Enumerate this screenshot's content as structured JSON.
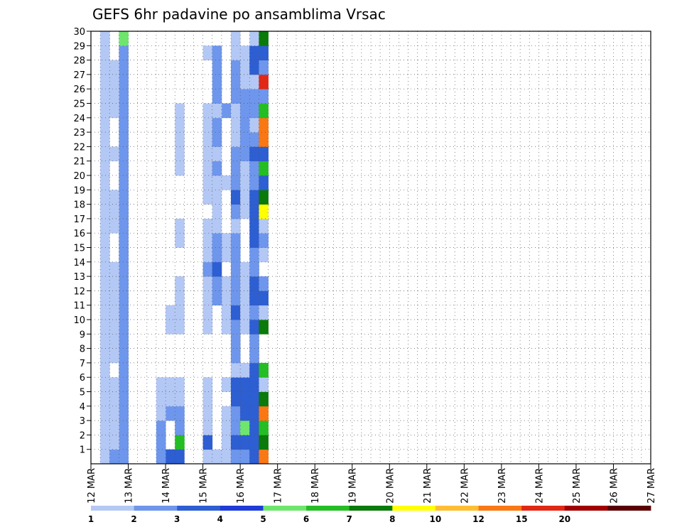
{
  "chart_data": {
    "type": "heatmap",
    "title": "GEFS 6hr padavine po ansamblima Vrsac",
    "x_tick_labels": [
      "12 MAR",
      "13 MAR",
      "14 MAR",
      "15 MAR",
      "16 MAR",
      "17 MAR",
      "18 MAR",
      "19 MAR",
      "20 MAR",
      "21 MAR",
      "22 MAR",
      "23 MAR",
      "24 MAR",
      "25 MAR",
      "26 MAR",
      "27 MAR"
    ],
    "y_tick_labels": [
      "1",
      "2",
      "3",
      "4",
      "5",
      "6",
      "7",
      "8",
      "9",
      "10",
      "11",
      "12",
      "13",
      "14",
      "15",
      "16",
      "17",
      "18",
      "19",
      "20",
      "21",
      "22",
      "23",
      "24",
      "25",
      "26",
      "27",
      "28",
      "29",
      "30"
    ],
    "x_unit": "6h steps from 12 MAR 00z",
    "y_range": [
      0,
      30
    ],
    "grid": true,
    "colorbar": {
      "labels": [
        "1",
        "2",
        "3",
        "4",
        "5",
        "6",
        "7",
        "8",
        "10",
        "12",
        "15",
        "20"
      ],
      "colors": [
        "#b4c8f5",
        "#6e96ec",
        "#2d5ed2",
        "#1e3cd8",
        "#6ee66e",
        "#24be24",
        "#0a7a0a",
        "#ffff00",
        "#ffbe32",
        "#fa7814",
        "#e12814",
        "#a00000",
        "#5a0000"
      ]
    },
    "cells": [
      [
        1,
        13,
        1
      ],
      [
        1,
        14,
        1
      ],
      [
        2,
        14,
        1
      ],
      [
        3,
        14,
        1
      ],
      [
        4,
        14,
        1
      ],
      [
        6,
        14,
        1
      ],
      [
        10,
        14,
        1
      ],
      [
        11,
        14,
        1
      ],
      [
        12,
        14,
        1
      ],
      [
        13,
        14,
        1
      ],
      [
        15,
        14,
        1
      ],
      [
        16,
        14,
        1
      ],
      [
        20,
        14,
        1
      ],
      [
        25,
        14,
        2
      ],
      [
        1,
        12,
        1
      ],
      [
        2,
        12,
        3
      ],
      [
        3,
        12,
        1
      ],
      [
        4,
        12,
        1
      ],
      [
        5,
        12,
        1
      ],
      [
        6,
        12,
        1
      ],
      [
        10,
        12,
        1
      ],
      [
        11,
        12,
        1
      ],
      [
        12,
        12,
        1
      ],
      [
        13,
        12,
        1
      ],
      [
        14,
        12,
        2
      ],
      [
        15,
        12,
        1
      ],
      [
        16,
        12,
        1
      ],
      [
        17,
        12,
        1
      ],
      [
        19,
        12,
        1
      ],
      [
        20,
        12,
        1
      ],
      [
        21,
        12,
        1
      ],
      [
        22,
        12,
        1
      ],
      [
        23,
        12,
        1
      ],
      [
        24,
        12,
        1
      ],
      [
        25,
        12,
        1
      ],
      [
        29,
        12,
        1
      ],
      [
        1,
        8,
        3
      ],
      [
        4,
        8,
        2
      ],
      [
        5,
        8,
        1
      ],
      [
        6,
        8,
        1
      ],
      [
        10,
        8,
        1
      ],
      [
        11,
        8,
        1
      ],
      [
        1,
        9,
        3
      ],
      [
        2,
        9,
        6
      ],
      [
        3,
        9,
        2
      ],
      [
        4,
        9,
        2
      ],
      [
        5,
        9,
        1
      ],
      [
        6,
        9,
        1
      ],
      [
        10,
        9,
        1
      ],
      [
        11,
        9,
        1
      ],
      [
        12,
        9,
        1
      ],
      [
        13,
        9,
        1
      ],
      [
        16,
        9,
        1
      ],
      [
        17,
        9,
        1
      ],
      [
        21,
        9,
        1
      ],
      [
        22,
        9,
        1
      ],
      [
        23,
        9,
        1
      ],
      [
        24,
        9,
        1
      ],
      [
        25,
        9,
        1
      ],
      [
        1,
        7,
        2
      ],
      [
        2,
        7,
        2
      ],
      [
        3,
        7,
        2
      ],
      [
        4,
        7,
        1
      ],
      [
        5,
        7,
        1
      ],
      [
        6,
        7,
        1
      ],
      [
        1,
        1,
        1
      ],
      [
        2,
        1,
        1
      ],
      [
        3,
        1,
        1
      ],
      [
        4,
        1,
        1
      ],
      [
        5,
        1,
        1
      ],
      [
        6,
        1,
        1
      ],
      [
        7,
        1,
        1
      ],
      [
        8,
        1,
        1
      ],
      [
        9,
        1,
        1
      ],
      [
        10,
        1,
        1
      ],
      [
        11,
        1,
        1
      ],
      [
        12,
        1,
        1
      ],
      [
        13,
        1,
        1
      ],
      [
        14,
        1,
        1
      ],
      [
        15,
        1,
        1
      ],
      [
        16,
        1,
        1
      ],
      [
        17,
        1,
        1
      ],
      [
        18,
        1,
        1
      ],
      [
        19,
        1,
        1
      ],
      [
        20,
        1,
        1
      ],
      [
        21,
        1,
        1
      ],
      [
        22,
        1,
        1
      ],
      [
        23,
        1,
        1
      ],
      [
        24,
        1,
        1
      ],
      [
        25,
        1,
        1
      ],
      [
        26,
        1,
        1
      ],
      [
        27,
        1,
        1
      ],
      [
        28,
        1,
        1
      ],
      [
        29,
        1,
        1
      ],
      [
        30,
        1,
        1
      ],
      [
        1,
        3,
        2
      ],
      [
        2,
        3,
        2
      ],
      [
        3,
        3,
        2
      ],
      [
        4,
        3,
        2
      ],
      [
        5,
        3,
        2
      ],
      [
        6,
        3,
        2
      ],
      [
        7,
        3,
        2
      ],
      [
        8,
        3,
        2
      ],
      [
        9,
        3,
        2
      ],
      [
        10,
        3,
        2
      ],
      [
        11,
        3,
        2
      ],
      [
        12,
        3,
        2
      ],
      [
        13,
        3,
        2
      ],
      [
        14,
        3,
        2
      ],
      [
        15,
        3,
        2
      ],
      [
        16,
        3,
        2
      ],
      [
        17,
        3,
        2
      ],
      [
        18,
        3,
        2
      ],
      [
        19,
        3,
        2
      ],
      [
        20,
        3,
        2
      ],
      [
        21,
        3,
        2
      ],
      [
        22,
        3,
        2
      ],
      [
        23,
        3,
        2
      ],
      [
        24,
        3,
        2
      ],
      [
        25,
        3,
        2
      ],
      [
        26,
        3,
        2
      ],
      [
        27,
        3,
        2
      ],
      [
        28,
        3,
        2
      ],
      [
        29,
        3,
        2
      ],
      [
        30,
        3,
        5
      ],
      [
        1,
        2,
        2
      ],
      [
        2,
        2,
        1
      ],
      [
        3,
        2,
        1
      ],
      [
        4,
        2,
        1
      ],
      [
        5,
        2,
        1
      ],
      [
        6,
        2,
        1
      ],
      [
        8,
        2,
        1
      ],
      [
        9,
        2,
        1
      ],
      [
        10,
        2,
        1
      ],
      [
        11,
        2,
        1
      ],
      [
        12,
        2,
        1
      ],
      [
        13,
        2,
        1
      ],
      [
        14,
        2,
        1
      ],
      [
        17,
        2,
        1
      ],
      [
        18,
        2,
        1
      ],
      [
        19,
        2,
        1
      ],
      [
        22,
        2,
        1
      ],
      [
        25,
        2,
        1
      ],
      [
        26,
        2,
        1
      ],
      [
        27,
        2,
        1
      ],
      [
        28,
        2,
        1
      ],
      [
        12,
        13,
        2
      ],
      [
        13,
        13,
        2
      ],
      [
        14,
        13,
        3
      ],
      [
        15,
        13,
        2
      ],
      [
        16,
        13,
        2
      ],
      [
        17,
        13,
        1
      ],
      [
        18,
        13,
        1
      ],
      [
        19,
        13,
        1
      ],
      [
        20,
        13,
        1
      ],
      [
        21,
        13,
        2
      ],
      [
        22,
        13,
        1
      ],
      [
        23,
        13,
        2
      ],
      [
        24,
        13,
        2
      ],
      [
        25,
        13,
        1
      ],
      [
        26,
        13,
        2
      ],
      [
        27,
        13,
        2
      ],
      [
        28,
        13,
        2
      ],
      [
        29,
        13,
        2
      ],
      [
        1,
        15,
        2
      ],
      [
        2,
        15,
        3
      ],
      [
        3,
        15,
        2
      ],
      [
        4,
        15,
        2
      ],
      [
        5,
        15,
        3
      ],
      [
        6,
        15,
        3
      ],
      [
        7,
        15,
        1
      ],
      [
        8,
        15,
        2
      ],
      [
        9,
        15,
        2
      ],
      [
        10,
        15,
        2
      ],
      [
        11,
        15,
        3
      ],
      [
        12,
        15,
        2
      ],
      [
        13,
        15,
        2
      ],
      [
        14,
        15,
        2
      ],
      [
        15,
        15,
        2
      ],
      [
        16,
        15,
        2
      ],
      [
        17,
        15,
        1
      ],
      [
        18,
        15,
        2
      ],
      [
        19,
        15,
        3
      ],
      [
        20,
        15,
        2
      ],
      [
        21,
        15,
        2
      ],
      [
        22,
        15,
        2
      ],
      [
        23,
        15,
        1
      ],
      [
        24,
        15,
        1
      ],
      [
        25,
        15,
        1
      ],
      [
        26,
        15,
        2
      ],
      [
        27,
        15,
        2
      ],
      [
        28,
        15,
        2
      ],
      [
        29,
        15,
        1
      ],
      [
        30,
        15,
        1
      ],
      [
        1,
        16,
        2
      ],
      [
        2,
        16,
        3
      ],
      [
        3,
        16,
        5
      ],
      [
        4,
        16,
        3
      ],
      [
        5,
        16,
        3
      ],
      [
        6,
        16,
        3
      ],
      [
        7,
        16,
        1
      ],
      [
        10,
        16,
        1
      ],
      [
        11,
        16,
        1
      ],
      [
        12,
        16,
        1
      ],
      [
        13,
        16,
        1
      ],
      [
        14,
        16,
        1
      ],
      [
        18,
        16,
        1
      ],
      [
        19,
        16,
        1
      ],
      [
        20,
        16,
        1
      ],
      [
        21,
        16,
        1
      ],
      [
        22,
        16,
        2
      ],
      [
        23,
        16,
        2
      ],
      [
        24,
        16,
        2
      ],
      [
        25,
        16,
        2
      ],
      [
        26,
        16,
        2
      ],
      [
        27,
        16,
        1
      ],
      [
        28,
        16,
        1
      ],
      [
        29,
        16,
        1
      ],
      [
        1,
        17,
        3
      ],
      [
        2,
        17,
        3
      ],
      [
        3,
        17,
        3
      ],
      [
        4,
        17,
        3
      ],
      [
        5,
        17,
        3
      ],
      [
        6,
        17,
        3
      ],
      [
        7,
        17,
        3
      ],
      [
        8,
        17,
        2
      ],
      [
        9,
        17,
        2
      ],
      [
        10,
        17,
        3
      ],
      [
        11,
        17,
        2
      ],
      [
        12,
        17,
        3
      ],
      [
        13,
        17,
        3
      ],
      [
        14,
        17,
        2
      ],
      [
        15,
        17,
        2
      ],
      [
        16,
        17,
        3
      ],
      [
        17,
        17,
        3
      ],
      [
        18,
        17,
        3
      ],
      [
        19,
        17,
        3
      ],
      [
        20,
        17,
        2
      ],
      [
        21,
        17,
        2
      ],
      [
        22,
        17,
        3
      ],
      [
        23,
        17,
        2
      ],
      [
        24,
        17,
        1
      ],
      [
        25,
        17,
        2
      ],
      [
        26,
        17,
        2
      ],
      [
        27,
        17,
        1
      ],
      [
        28,
        17,
        3
      ],
      [
        29,
        17,
        3
      ],
      [
        30,
        17,
        1
      ],
      [
        1,
        18,
        10
      ],
      [
        2,
        18,
        7
      ],
      [
        3,
        18,
        6
      ],
      [
        4,
        18,
        10
      ],
      [
        5,
        18,
        7
      ],
      [
        6,
        18,
        1
      ],
      [
        7,
        18,
        6
      ],
      [
        10,
        18,
        7
      ],
      [
        11,
        18,
        1
      ],
      [
        12,
        18,
        3
      ],
      [
        13,
        18,
        2
      ],
      [
        15,
        18,
        1
      ],
      [
        16,
        18,
        2
      ],
      [
        17,
        18,
        1
      ],
      [
        18,
        18,
        8
      ],
      [
        19,
        18,
        7
      ],
      [
        20,
        18,
        3
      ],
      [
        21,
        18,
        6
      ],
      [
        22,
        18,
        3
      ],
      [
        23,
        18,
        10
      ],
      [
        24,
        18,
        10
      ],
      [
        25,
        18,
        6
      ],
      [
        26,
        18,
        2
      ],
      [
        27,
        18,
        11
      ],
      [
        28,
        18,
        2
      ],
      [
        29,
        18,
        3
      ],
      [
        30,
        18,
        7
      ]
    ]
  }
}
